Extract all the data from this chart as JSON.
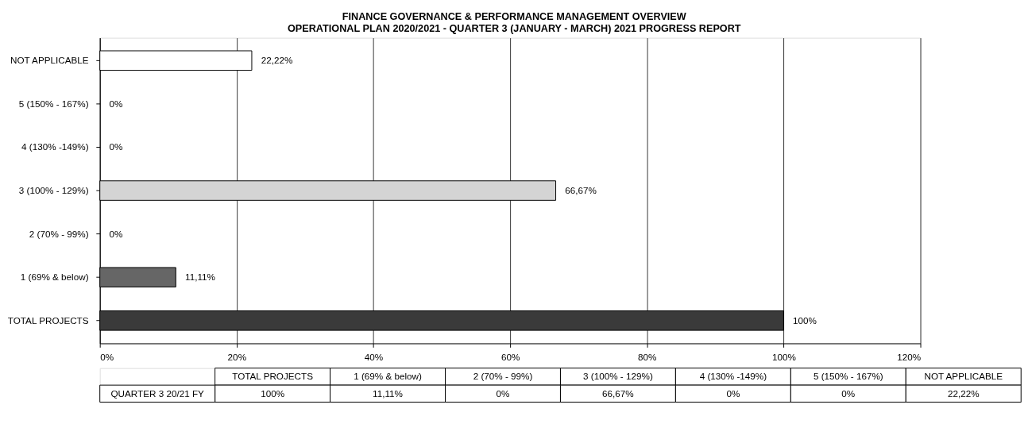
{
  "chart_data": {
    "type": "bar",
    "orientation": "horizontal",
    "title": "FINANCE GOVERNANCE & PERFORMANCE  MANAGEMENT OVERVIEW",
    "subtitle": "OPERATIONAL PLAN 2020/2021 - QUARTER 3 (JANUARY - MARCH) 2021 PROGRESS REPORT",
    "categories": [
      "NOT APPLICABLE",
      "5 (150% - 167%)",
      "4 (130% -149%)",
      "3 (100% - 129%)",
      "2 (70% - 99%)",
      "1 (69% & below)",
      "TOTAL PROJECTS"
    ],
    "values": [
      22.22,
      0,
      0,
      66.67,
      0,
      11.11,
      100
    ],
    "colors": [
      "#ffffff",
      "#ffffff",
      "#ffffff",
      "#d4d4d4",
      "#ffffff",
      "#666666",
      "#3a3a3a"
    ],
    "value_labels": [
      "22,22%",
      "0%",
      "0%",
      "66,67%",
      "0%",
      "11,11%",
      "100%"
    ],
    "xlim": [
      0,
      120
    ],
    "xticks": [
      {
        "value": 0,
        "label": "0%"
      },
      {
        "value": 20,
        "label": "20%"
      },
      {
        "value": 40,
        "label": "40%"
      },
      {
        "value": 60,
        "label": "60%"
      },
      {
        "value": 80,
        "label": "80%"
      },
      {
        "value": 100,
        "label": "100%"
      },
      {
        "value": 120,
        "label": "120%"
      }
    ],
    "grid": "x",
    "legend": false,
    "annotations": [
      "QUARTER 3 20/21 FY"
    ]
  }
}
